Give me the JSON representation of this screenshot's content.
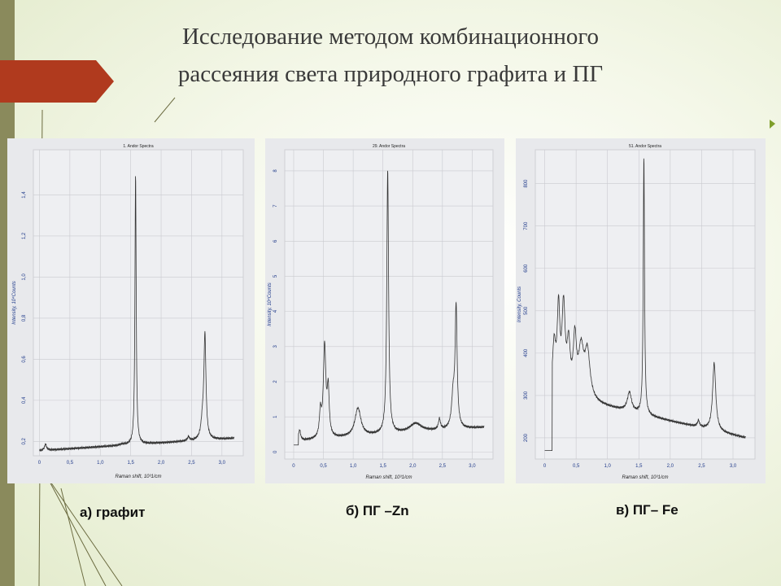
{
  "slide": {
    "title_lines": [
      "Исследование методом комбинационного",
      "рассеяния света  природного графита  и ПГ"
    ],
    "captions": [
      "а) графит",
      "б) ПГ –Zn",
      "в)  ПГ– Fe"
    ]
  },
  "colors": {
    "accent_red": "#b03a1e",
    "left_bar": "#8a8a5c",
    "trace": "#333333"
  },
  "chart_data": [
    {
      "type": "line",
      "title": "1. Andor Spectra",
      "xlabel": "Raman shift, 10³1/cm",
      "ylabel": "Intensity, 10⁴Counts",
      "xlim": [
        -0.1,
        3.35
      ],
      "ylim": [
        0.13,
        1.62
      ],
      "xticks": [
        0,
        0.5,
        1.0,
        1.5,
        2.0,
        2.5,
        3.0
      ],
      "xtick_labels": [
        "0",
        "0,5",
        "1,0",
        "1,5",
        "2,0",
        "2,5",
        "3,0"
      ],
      "yticks": [
        0.2,
        0.4,
        0.6,
        0.8,
        1.0,
        1.2,
        1.4
      ],
      "ytick_labels": [
        "0,2",
        "0,4",
        "0,6",
        "0,8",
        "1,0",
        "1,2",
        "1,4"
      ],
      "grid": true,
      "baseline": {
        "x": [
          0,
          3.2
        ],
        "y": [
          0.155,
          0.215
        ]
      },
      "step": null,
      "peaks": [
        {
          "x": 0.1,
          "h": 0.03,
          "w": 0.02
        },
        {
          "x": 1.36,
          "h": 0.005,
          "w": 0.04
        },
        {
          "x": 1.58,
          "h": 1.32,
          "w": 0.012
        },
        {
          "x": 2.45,
          "h": 0.02,
          "w": 0.02
        },
        {
          "x": 2.68,
          "h": 0.08,
          "w": 0.03
        },
        {
          "x": 2.72,
          "h": 0.5,
          "w": 0.02
        }
      ]
    },
    {
      "type": "line",
      "title": "29. Andor Spectra",
      "xlabel": "Raman shift, 10³1/cm",
      "ylabel": "Intensity, 10⁴Counts",
      "xlim": [
        -0.15,
        3.35
      ],
      "ylim": [
        -0.2,
        8.6
      ],
      "xticks": [
        0,
        0.5,
        1.0,
        1.5,
        2.0,
        2.5,
        3.0
      ],
      "xtick_labels": [
        "0",
        "0,5",
        "1,0",
        "1,5",
        "2,0",
        "2,5",
        "3,0"
      ],
      "yticks": [
        0,
        1,
        2,
        3,
        4,
        5,
        6,
        7,
        8
      ],
      "ytick_labels": [
        "0",
        "1",
        "2",
        "3",
        "4",
        "5",
        "6",
        "7",
        "8"
      ],
      "grid": true,
      "baseline": {
        "x": [
          0,
          3.2
        ],
        "y": [
          0.3,
          0.7
        ]
      },
      "step": {
        "x": 0.08,
        "from": 0.2,
        "to": 0.6
      },
      "peaks": [
        {
          "x": 0.1,
          "h": 0.3,
          "w": 0.02
        },
        {
          "x": 0.45,
          "h": 0.7,
          "w": 0.02
        },
        {
          "x": 0.52,
          "h": 2.6,
          "w": 0.025
        },
        {
          "x": 0.58,
          "h": 1.3,
          "w": 0.02
        },
        {
          "x": 1.08,
          "h": 0.8,
          "w": 0.06
        },
        {
          "x": 1.58,
          "h": 7.5,
          "w": 0.018
        },
        {
          "x": 2.05,
          "h": 0.25,
          "w": 0.12
        },
        {
          "x": 2.45,
          "h": 0.3,
          "w": 0.02
        },
        {
          "x": 2.68,
          "h": 0.9,
          "w": 0.03
        },
        {
          "x": 2.73,
          "h": 3.4,
          "w": 0.02
        }
      ]
    },
    {
      "type": "line",
      "title": "51. Andor Spectra",
      "xlabel": "Raman shift, 10³1/cm",
      "ylabel": "Intensity, Counts",
      "xlim": [
        -0.15,
        3.35
      ],
      "ylim": [
        150,
        880
      ],
      "xticks": [
        0,
        0.5,
        1.0,
        1.5,
        2.0,
        2.5,
        3.0
      ],
      "xtick_labels": [
        "0",
        "0,5",
        "1,0",
        "1,5",
        "2,0",
        "2,5",
        "3,0"
      ],
      "yticks": [
        200,
        300,
        400,
        500,
        600,
        700,
        800
      ],
      "ytick_labels": [
        "200",
        "300",
        "400",
        "500",
        "600",
        "700",
        "800"
      ],
      "grid": true,
      "baseline": {
        "x": [
          0.15,
          3.2
        ],
        "y": [
          300,
          200
        ]
      },
      "step": {
        "x": 0.12,
        "from": 170,
        "to": 300
      },
      "peaks": [
        {
          "x": 0.15,
          "h": 110,
          "w": 0.03
        },
        {
          "x": 0.22,
          "h": 190,
          "w": 0.025
        },
        {
          "x": 0.3,
          "h": 200,
          "w": 0.03
        },
        {
          "x": 0.38,
          "h": 110,
          "w": 0.03
        },
        {
          "x": 0.48,
          "h": 130,
          "w": 0.03
        },
        {
          "x": 0.58,
          "h": 110,
          "w": 0.05
        },
        {
          "x": 0.68,
          "h": 110,
          "w": 0.05
        },
        {
          "x": 1.35,
          "h": 45,
          "w": 0.04
        },
        {
          "x": 1.58,
          "h": 610,
          "w": 0.012
        },
        {
          "x": 2.45,
          "h": 15,
          "w": 0.02
        },
        {
          "x": 2.7,
          "h": 160,
          "w": 0.03
        }
      ]
    }
  ]
}
